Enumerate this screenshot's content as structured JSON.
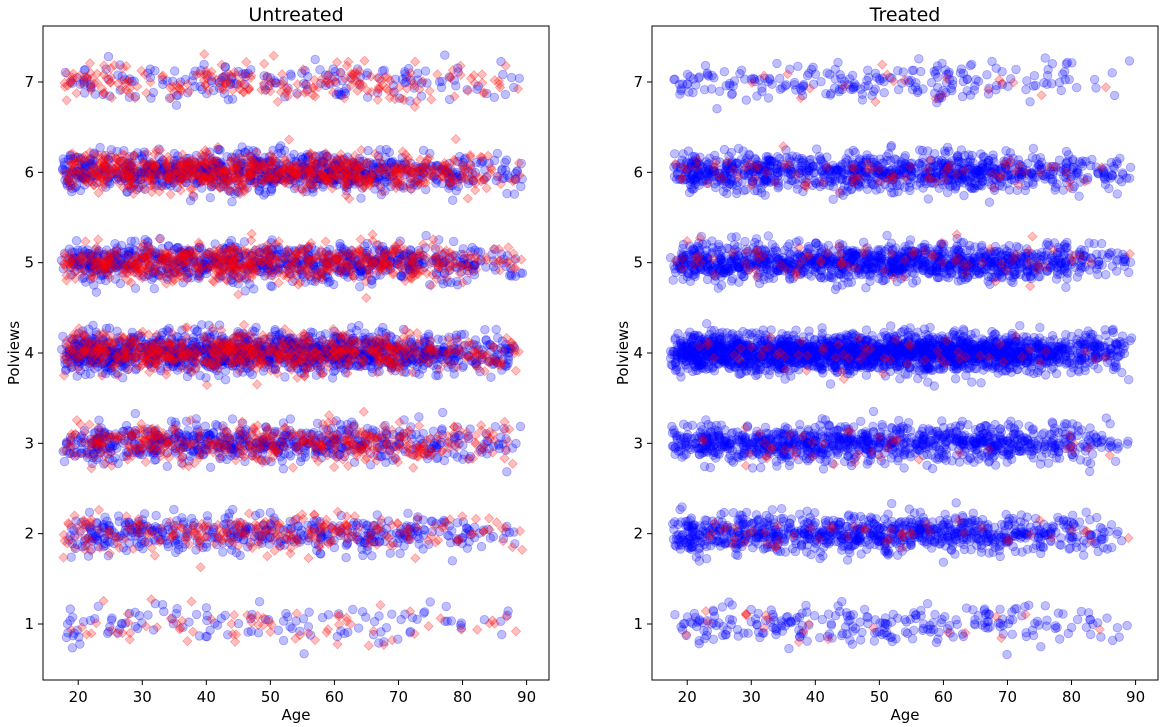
{
  "chart_data": [
    {
      "type": "scatter",
      "title": "Untreated",
      "xlabel": "Age",
      "ylabel": "Polviews",
      "xlim": [
        14.5,
        93.5
      ],
      "ylim": [
        0.38,
        7.62
      ],
      "xticks": [
        20,
        30,
        40,
        50,
        60,
        70,
        80,
        90
      ],
      "yticks": [
        1,
        2,
        3,
        4,
        5,
        6,
        7
      ],
      "grid": false,
      "legend": "none",
      "y_levels": [
        1,
        2,
        3,
        4,
        5,
        6,
        7
      ],
      "x_range": [
        18,
        89
      ],
      "series": [
        {
          "marker": "circle",
          "color": "#0000ff",
          "alpha": 0.25,
          "jitter_x": 0.5,
          "jitter_y": 0.15,
          "counts_per_level": [
            120,
            450,
            650,
            1400,
            850,
            950,
            180
          ]
        },
        {
          "marker": "diamond",
          "color": "#ff0000",
          "alpha": 0.25,
          "jitter_x": 0.5,
          "jitter_y": 0.15,
          "counts_per_level": [
            70,
            250,
            400,
            650,
            600,
            700,
            220
          ]
        }
      ]
    },
    {
      "type": "scatter",
      "title": "Treated",
      "xlabel": "Age",
      "ylabel": "Polviews",
      "xlim": [
        14.5,
        93.5
      ],
      "ylim": [
        0.38,
        7.62
      ],
      "xticks": [
        20,
        30,
        40,
        50,
        60,
        70,
        80,
        90
      ],
      "yticks": [
        1,
        2,
        3,
        4,
        5,
        6,
        7
      ],
      "grid": false,
      "legend": "none",
      "y_levels": [
        1,
        2,
        3,
        4,
        5,
        6,
        7
      ],
      "x_range": [
        18,
        89
      ],
      "series": [
        {
          "marker": "circle",
          "color": "#0000ff",
          "alpha": 0.25,
          "jitter_x": 0.5,
          "jitter_y": 0.15,
          "counts_per_level": [
            260,
            900,
            1000,
            2200,
            1200,
            1000,
            220
          ]
        },
        {
          "marker": "diamond",
          "color": "#ff0000",
          "alpha": 0.25,
          "jitter_x": 0.5,
          "jitter_y": 0.15,
          "counts_per_level": [
            20,
            50,
            40,
            60,
            80,
            80,
            20
          ]
        }
      ]
    }
  ]
}
